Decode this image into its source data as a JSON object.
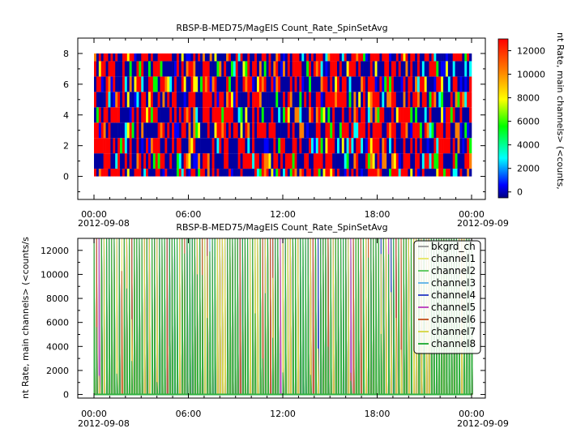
{
  "chart_data": [
    {
      "type": "heatmap",
      "title": "RBSP-B-MED75/MagEIS  Count_Rate_SpinSetAvg",
      "x_ticks": [
        "00:00",
        "06:00",
        "12:00",
        "18:00",
        "00:00"
      ],
      "x_date_start": "2012-09-08",
      "x_date_end": "2012-09-09",
      "x_range": [
        0,
        24
      ],
      "ylim": [
        -1.5,
        9
      ],
      "y_ticks": [
        0,
        2,
        4,
        6,
        8
      ],
      "channels": [
        0,
        1,
        2,
        3,
        4,
        5,
        6,
        7,
        8
      ],
      "colorbar": {
        "range": [
          -500,
          13000
        ],
        "ticks": [
          0,
          2000,
          4000,
          6000,
          8000,
          10000,
          12000
        ],
        "label": "nt Rate, main channels> (<counts,",
        "colors": [
          "#0000a0",
          "#0000ff",
          "#00ffff",
          "#00ff00",
          "#ffff00",
          "#ff7f00",
          "#ff0000"
        ]
      },
      "grid": false
    },
    {
      "type": "line",
      "title": "RBSP-B-MED75/MagEIS  Count_Rate_SpinSetAvg",
      "x_ticks": [
        "00:00",
        "06:00",
        "12:00",
        "18:00",
        "00:00"
      ],
      "x_date_start": "2012-09-08",
      "x_date_end": "2012-09-09",
      "x_range": [
        0,
        24
      ],
      "ylabel": "nt Rate, main channels> (<counts/s",
      "ylim": [
        -300,
        13000
      ],
      "y_ticks": [
        0,
        2000,
        4000,
        6000,
        8000,
        10000,
        12000
      ],
      "legend_position": "top-right",
      "grid": false,
      "series": [
        {
          "name": "bkgrd_ch",
          "color": "#a0a0a0"
        },
        {
          "name": "channel1",
          "color": "#e8e870"
        },
        {
          "name": "channel2",
          "color": "#66cc66"
        },
        {
          "name": "channel3",
          "color": "#6cb8e8"
        },
        {
          "name": "channel4",
          "color": "#3c4cc8"
        },
        {
          "name": "channel5",
          "color": "#c04cc0"
        },
        {
          "name": "channel6",
          "color": "#c86030"
        },
        {
          "name": "channel7",
          "color": "#d8d850"
        },
        {
          "name": "channel8",
          "color": "#30b040"
        }
      ]
    }
  ]
}
